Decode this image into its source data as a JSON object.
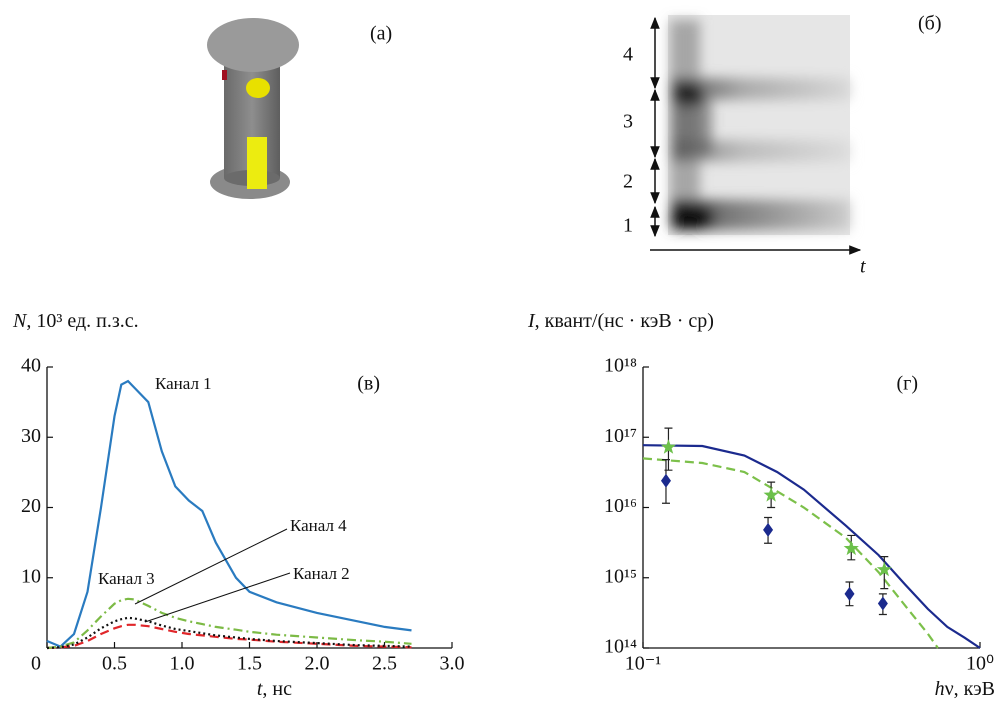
{
  "panels": {
    "a": {
      "label": "(а)"
    },
    "b": {
      "label": "(б)",
      "band_labels": [
        "4",
        "3",
        "2",
        "1"
      ],
      "axis_label": "t"
    }
  },
  "chart_data": [
    {
      "type": "line",
      "panel_label": "(в)",
      "ylabel": [
        "N",
        ", 10³ ед. п.з.с."
      ],
      "xlabel": [
        "t",
        ", нс"
      ],
      "xlim": [
        0,
        3
      ],
      "ylim": [
        0,
        40
      ],
      "xticks": [
        0,
        0.5,
        {
          "value": 1,
          "label": "1.0"
        },
        1.5,
        {
          "value": 2,
          "label": "2.0"
        },
        2.5,
        {
          "value": 3,
          "label": "3.0"
        }
      ],
      "yticks": [
        10,
        20,
        30,
        40
      ],
      "x": [
        0,
        0.1,
        0.2,
        0.3,
        0.4,
        0.5,
        0.55,
        0.6,
        0.65,
        0.75,
        0.85,
        0.95,
        1.05,
        1.15,
        1.25,
        1.4,
        1.5,
        1.7,
        2.0,
        2.3,
        2.5,
        2.7
      ],
      "series": [
        {
          "name": "Канал 1",
          "color": "#2a7bc0",
          "dash": "solid",
          "values": [
            1,
            0.2,
            2,
            8,
            20,
            33,
            37.5,
            38,
            37,
            35,
            28,
            23,
            21,
            19.5,
            15,
            10,
            8,
            6.5,
            5,
            3.8,
            3,
            2.5
          ]
        },
        {
          "name": "Канал 2",
          "color": "#e0262a",
          "dash": "dashed",
          "values": [
            0,
            0.1,
            0.3,
            1,
            2,
            2.8,
            3.1,
            3.3,
            3.3,
            3.1,
            2.7,
            2.3,
            2,
            1.8,
            1.6,
            1.3,
            1.2,
            0.9,
            0.6,
            0.3,
            0.2,
            0.1
          ]
        },
        {
          "name": "Канал 3",
          "color": "#7cba45",
          "dash": "dashdot",
          "values": [
            0,
            0.2,
            0.8,
            2.5,
            4.5,
            6.3,
            6.8,
            7,
            6.9,
            6,
            5,
            4.3,
            3.8,
            3.4,
            3,
            2.6,
            2.3,
            1.9,
            1.5,
            1.1,
            0.9,
            0.6
          ]
        },
        {
          "name": "Канал 4",
          "color": "#111111",
          "dash": "dotted",
          "values": [
            0,
            0.1,
            0.5,
            1.5,
            2.8,
            3.8,
            4.1,
            4.3,
            4.2,
            3.8,
            3.2,
            2.7,
            2.4,
            2.1,
            1.8,
            1.5,
            1.3,
            1,
            0.7,
            0.4,
            0.3,
            0.2
          ]
        }
      ]
    },
    {
      "type": "line",
      "panel_label": "(г)",
      "ylabel": [
        "I",
        ", квант/(нс · кэВ · ср)"
      ],
      "xlabel": [
        "h",
        "ν, кэВ"
      ],
      "xscale": "log",
      "yscale": "log",
      "xlim": [
        0.1,
        1
      ],
      "ylim": [
        100000000000000.0,
        1e+18
      ],
      "xticks": [
        {
          "value": 0.1,
          "label": "10⁻¹"
        },
        {
          "value": 1,
          "label": "10⁰"
        }
      ],
      "yticks": [
        {
          "value": 100000000000000.0,
          "label": "10¹⁴"
        },
        {
          "value": 1000000000000000.0,
          "label": "10¹⁵"
        },
        {
          "value": 1e+16,
          "label": "10¹⁶"
        },
        {
          "value": 1e+17,
          "label": "10¹⁷"
        },
        {
          "value": 1e+18,
          "label": "10¹⁸"
        }
      ],
      "series": [
        {
          "kind": "line",
          "color": "#1b2a8e",
          "dash": "solid",
          "x": [
            0.1,
            0.15,
            0.2,
            0.25,
            0.3,
            0.4,
            0.5,
            0.6,
            0.7,
            0.8,
            0.9,
            1.0
          ],
          "values": [
            7.7e+16,
            7.5e+16,
            5.5e+16,
            3.2e+16,
            1.8e+16,
            5500000000000000.0,
            2100000000000000.0,
            800000000000000.0,
            360000000000000.0,
            200000000000000.0,
            140000000000000.0,
            100000000000000.0
          ]
        },
        {
          "kind": "line",
          "color": "#7cc04a",
          "dash": "dashed",
          "x": [
            0.1,
            0.15,
            0.2,
            0.25,
            0.3,
            0.4,
            0.5,
            0.6,
            0.7,
            0.75
          ],
          "values": [
            5e+16,
            4.3e+16,
            3.2e+16,
            1.7e+16,
            1e+16,
            3700000000000000.0,
            1200000000000000.0,
            400000000000000.0,
            160000000000000.0,
            100000000000000.0
          ]
        },
        {
          "kind": "scatter",
          "marker": "diamond",
          "color": "#1b2a8e",
          "x": [
            0.117,
            0.235,
            0.41,
            0.515
          ],
          "values": [
            2.4e+16,
            4800000000000000.0,
            590000000000000.0,
            430000000000000.0
          ],
          "lower": [
            1.15e+16,
            3100000000000000.0,
            400000000000000.0,
            300000000000000.0
          ],
          "upper": [
            4.8e+16,
            7200000000000000.0,
            870000000000000.0,
            590000000000000.0
          ]
        },
        {
          "kind": "scatter",
          "marker": "star",
          "color": "#6cc04a",
          "x": [
            0.119,
            0.24,
            0.415,
            0.52
          ],
          "values": [
            7.2e+16,
            1.5e+16,
            2600000000000000.0,
            1300000000000000.0
          ],
          "lower": [
            3.4e+16,
            1e+16,
            1800000000000000.0,
            700000000000000.0
          ],
          "upper": [
            1.35e+17,
            2.3e+16,
            4000000000000000.0,
            2000000000000000.0
          ]
        }
      ]
    }
  ]
}
